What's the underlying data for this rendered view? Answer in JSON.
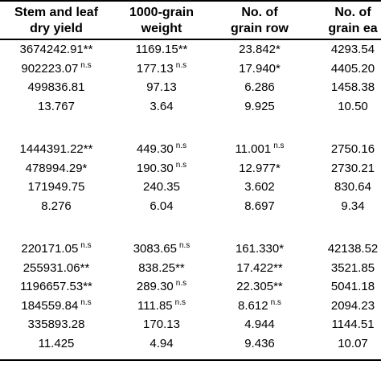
{
  "columns": [
    {
      "line1": "Stem and leaf",
      "line2": "dry yield"
    },
    {
      "line1": "1000-grain",
      "line2": "weight"
    },
    {
      "line1": "No. of",
      "line2": "grain row"
    },
    {
      "line1": "No. of",
      "line2": "grain ea"
    }
  ],
  "groups": [
    {
      "rows": [
        [
          {
            "v": "3674242.91",
            "s": "**"
          },
          {
            "v": "1169.15",
            "s": "**"
          },
          {
            "v": "23.842",
            "s": "*"
          },
          {
            "v": "4293.54",
            "s": ""
          }
        ],
        [
          {
            "v": "902223.07",
            "s": "n.s"
          },
          {
            "v": "177.13",
            "s": "n.s"
          },
          {
            "v": "17.940",
            "s": "*"
          },
          {
            "v": "4405.20",
            "s": ""
          }
        ],
        [
          {
            "v": "499836.81",
            "s": ""
          },
          {
            "v": "97.13",
            "s": ""
          },
          {
            "v": "6.286",
            "s": ""
          },
          {
            "v": "1458.38",
            "s": ""
          }
        ],
        [
          {
            "v": "13.767",
            "s": ""
          },
          {
            "v": "3.64",
            "s": ""
          },
          {
            "v": "9.925",
            "s": ""
          },
          {
            "v": "10.50",
            "s": ""
          }
        ]
      ]
    },
    {
      "rows": [
        [
          {
            "v": "1444391.22",
            "s": "**"
          },
          {
            "v": "449.30",
            "s": "n.s"
          },
          {
            "v": "11.001",
            "s": "n.s"
          },
          {
            "v": "2750.16",
            "s": ""
          }
        ],
        [
          {
            "v": "478994.29",
            "s": "*"
          },
          {
            "v": "190.30",
            "s": "n.s"
          },
          {
            "v": "12.977",
            "s": "*"
          },
          {
            "v": "2730.21",
            "s": ""
          }
        ],
        [
          {
            "v": "171949.75",
            "s": ""
          },
          {
            "v": "240.35",
            "s": ""
          },
          {
            "v": "3.602",
            "s": ""
          },
          {
            "v": "830.64",
            "s": ""
          }
        ],
        [
          {
            "v": "8.276",
            "s": ""
          },
          {
            "v": "6.04",
            "s": ""
          },
          {
            "v": "8.697",
            "s": ""
          },
          {
            "v": "9.34",
            "s": ""
          }
        ]
      ]
    },
    {
      "rows": [
        [
          {
            "v": "220171.05",
            "s": "n.s"
          },
          {
            "v": "3083.65",
            "s": "n.s"
          },
          {
            "v": "161.330",
            "s": "*"
          },
          {
            "v": "42138.52",
            "s": ""
          }
        ],
        [
          {
            "v": "255931.06",
            "s": "**"
          },
          {
            "v": "838.25",
            "s": "**"
          },
          {
            "v": "17.422",
            "s": "**"
          },
          {
            "v": "3521.85",
            "s": ""
          }
        ],
        [
          {
            "v": "1196657.53",
            "s": "**"
          },
          {
            "v": "289.30",
            "s": "n.s"
          },
          {
            "v": "22.305",
            "s": "**"
          },
          {
            "v": "5041.18",
            "s": ""
          }
        ],
        [
          {
            "v": "184559.84",
            "s": "n.s"
          },
          {
            "v": "111.85",
            "s": "n.s"
          },
          {
            "v": "8.612",
            "s": "n.s"
          },
          {
            "v": "2094.23",
            "s": ""
          }
        ],
        [
          {
            "v": "335893.28",
            "s": ""
          },
          {
            "v": "170.13",
            "s": ""
          },
          {
            "v": "4.944",
            "s": ""
          },
          {
            "v": "1144.51",
            "s": ""
          }
        ],
        [
          {
            "v": "11.425",
            "s": ""
          },
          {
            "v": "4.94",
            "s": ""
          },
          {
            "v": "9.436",
            "s": ""
          },
          {
            "v": "10.07",
            "s": ""
          }
        ]
      ]
    }
  ]
}
